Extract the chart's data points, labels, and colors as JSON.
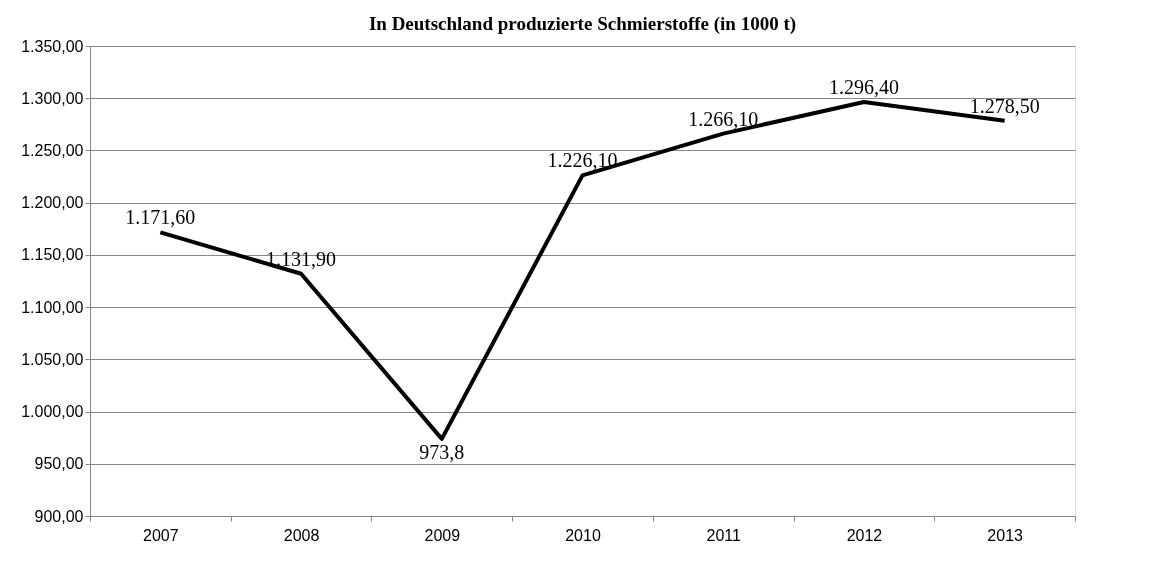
{
  "chart_data": {
    "type": "line",
    "title": "In Deutschland produzierte Schmierstoffe (in 1000 t)",
    "categories": [
      "2007",
      "2008",
      "2009",
      "2010",
      "2011",
      "2012",
      "2013"
    ],
    "series": [
      {
        "color": "#000000",
        "values": [
          1171.6,
          1131.9,
          973.8,
          1226.1,
          1266.1,
          1296.4,
          1278.5
        ],
        "value_labels": [
          "1.171,60",
          "1.131,90",
          "973,8",
          "1.226,10",
          "1.266,10",
          "1.296,40",
          "1.278,50"
        ]
      }
    ],
    "ylim": [
      900,
      1350
    ],
    "yticks": [
      {
        "value": 900,
        "label": "900,00"
      },
      {
        "value": 950,
        "label": "950,00"
      },
      {
        "value": 1000,
        "label": "1.000,00"
      },
      {
        "value": 1050,
        "label": "1.050,00"
      },
      {
        "value": 1100,
        "label": "1.100,00"
      },
      {
        "value": 1150,
        "label": "1.150,00"
      },
      {
        "value": 1200,
        "label": "1.200,00"
      },
      {
        "value": 1250,
        "label": "1.250,00"
      },
      {
        "value": 1300,
        "label": "1.300,00"
      },
      {
        "value": 1350,
        "label": "1.350,00"
      }
    ],
    "grid": "y",
    "marker": "none",
    "line_style": "solid"
  }
}
